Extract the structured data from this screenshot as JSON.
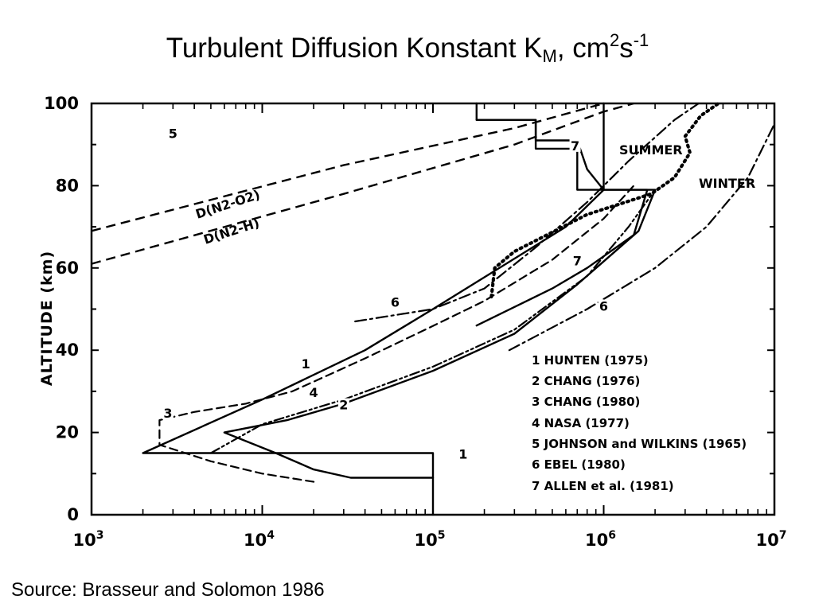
{
  "page": {
    "title_main": "Turbulent Diffusion Konstant K",
    "title_sub": "M",
    "title_mid": ", cm",
    "title_sup1": "2",
    "title_s": "s",
    "title_sup2": "-1",
    "source": "Source: Brasseur and Solomon 1986"
  },
  "chart_data": {
    "type": "line",
    "title": "Turbulent Diffusion Konstant KM, cm2s-1",
    "xlabel": "",
    "ylabel": "ALTITUDE (km)",
    "xscale": "log",
    "xlim": [
      1000,
      10000000
    ],
    "ylim": [
      0,
      100
    ],
    "x_ticks": [
      {
        "base": "10",
        "exp": "3",
        "value": 1000
      },
      {
        "base": "10",
        "exp": "4",
        "value": 10000
      },
      {
        "base": "10",
        "exp": "5",
        "value": 100000
      },
      {
        "base": "10",
        "exp": "6",
        "value": 1000000
      },
      {
        "base": "10",
        "exp": "7",
        "value": 10000000
      }
    ],
    "y_ticks": [
      "0",
      "20",
      "40",
      "60",
      "80",
      "100"
    ],
    "y_tick_values": [
      0,
      20,
      40,
      60,
      80,
      100
    ],
    "legend_placement": "bottom-right",
    "legend": [
      "1  HUNTEN  (1975)",
      "2  CHANG  (1976)",
      "3  CHANG  (1980)",
      "4  NASA  (1977)",
      "5  JOHNSON and WILKINS  (1965)",
      "6  EBEL  (1980)",
      "7  ALLEN et al.  (1981)"
    ],
    "series": [
      {
        "name": "1",
        "style": "solid",
        "points": [
          [
            100000,
            0
          ],
          [
            100000,
            15
          ],
          [
            2000,
            15
          ],
          [
            10000,
            28
          ],
          [
            40000,
            40
          ],
          [
            100000,
            50
          ],
          [
            600000,
            70
          ],
          [
            1000000,
            79
          ],
          [
            1000000,
            100
          ]
        ]
      },
      {
        "name": "2",
        "style": "solid",
        "points": [
          [
            100000,
            9
          ],
          [
            33000,
            9
          ],
          [
            20000,
            11
          ],
          [
            12000,
            15
          ],
          [
            6000,
            20
          ],
          [
            14000,
            23
          ],
          [
            30000,
            27
          ],
          [
            100000,
            35
          ],
          [
            300000,
            44
          ],
          [
            700000,
            56
          ],
          [
            1600000,
            69
          ],
          [
            2000000,
            79
          ],
          [
            700000,
            79
          ],
          [
            700000,
            89
          ],
          [
            400000,
            89
          ],
          [
            400000,
            96
          ],
          [
            180000,
            96
          ],
          [
            180000,
            100
          ]
        ]
      },
      {
        "name": "3",
        "style": "dashed",
        "points": [
          [
            20000,
            8
          ],
          [
            10000,
            10
          ],
          [
            5000,
            13
          ],
          [
            2500,
            17
          ],
          [
            2500,
            23
          ],
          [
            4000,
            25
          ],
          [
            8000,
            27
          ],
          [
            15000,
            30
          ],
          [
            40000,
            38
          ],
          [
            90000,
            45
          ],
          [
            200000,
            52
          ],
          [
            500000,
            62
          ],
          [
            1000000,
            72
          ],
          [
            1500000,
            80
          ]
        ]
      },
      {
        "name": "4",
        "style": "dash-dot-dot",
        "points": [
          [
            5000,
            15
          ],
          [
            10000,
            22
          ],
          [
            30000,
            28
          ],
          [
            100000,
            36
          ],
          [
            300000,
            45
          ],
          [
            800000,
            58
          ],
          [
            1400000,
            70
          ],
          [
            2000000,
            79
          ]
        ]
      },
      {
        "name": "5",
        "style": "dotted",
        "points": [
          [
            220000,
            53
          ],
          [
            230000,
            60
          ],
          [
            300000,
            64
          ],
          [
            800000,
            73
          ],
          [
            1900000,
            78
          ],
          [
            2600000,
            82
          ],
          [
            3200000,
            88
          ],
          [
            3000000,
            92
          ],
          [
            3700000,
            97
          ],
          [
            4700000,
            100
          ]
        ]
      },
      {
        "name": "6",
        "style": "dash-dot",
        "points": [
          [
            35000,
            47
          ],
          [
            100000,
            50
          ],
          [
            200000,
            55
          ],
          [
            400000,
            65
          ],
          [
            800000,
            76
          ],
          [
            1400000,
            86
          ],
          [
            2600000,
            96
          ],
          [
            3600000,
            100
          ]
        ]
      },
      {
        "name": "6",
        "style": "dash-dot",
        "points": [
          [
            280000,
            40
          ],
          [
            800000,
            50
          ],
          [
            2000000,
            60
          ],
          [
            4000000,
            70
          ],
          [
            7000000,
            82
          ],
          [
            10000000,
            95
          ]
        ]
      },
      {
        "name": "7",
        "style": "solid",
        "points": [
          [
            180000,
            46
          ],
          [
            500000,
            55
          ],
          [
            800000,
            60
          ],
          [
            1500000,
            68
          ],
          [
            1800000,
            79
          ],
          [
            1000000,
            79
          ],
          [
            800000,
            84
          ],
          [
            700000,
            91
          ],
          [
            400000,
            91
          ],
          [
            400000,
            96
          ],
          [
            180000,
            96
          ]
        ]
      }
    ],
    "labelled_lines": [
      {
        "label": "D(N2-O2)",
        "points": [
          [
            1000,
            69
          ],
          [
            30000,
            85
          ],
          [
            300000,
            94
          ],
          [
            1000000,
            100
          ]
        ]
      },
      {
        "label": "D(N2-H)",
        "points": [
          [
            1000,
            61
          ],
          [
            30000,
            78
          ],
          [
            300000,
            90
          ],
          [
            1000000,
            98
          ],
          [
            1500000,
            100
          ]
        ]
      }
    ],
    "annotations": [
      "SUMMER",
      "WINTER"
    ],
    "curve_numbers": [
      "1",
      "2",
      "3",
      "4",
      "5",
      "6",
      "7"
    ]
  }
}
